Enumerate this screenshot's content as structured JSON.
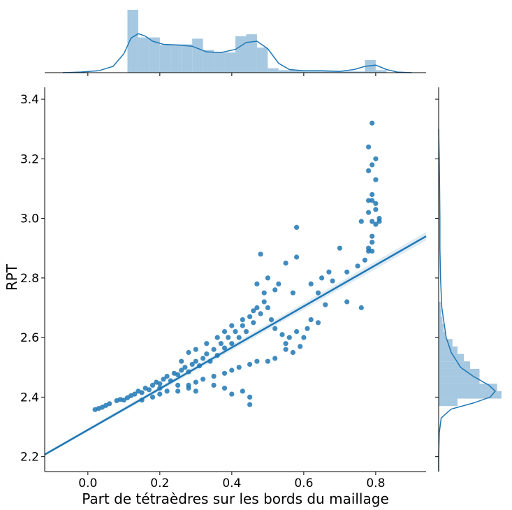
{
  "chart_data": {
    "type": "scatter",
    "title": "",
    "xlabel": "Part de tétraèdres sur les bords du maillage",
    "ylabel": "RPT",
    "xlim": [
      -0.12,
      0.94
    ],
    "ylim": [
      2.15,
      3.44
    ],
    "x_ticks": [
      "0.0",
      "0.2",
      "0.4",
      "0.6",
      "0.8"
    ],
    "x_tick_values": [
      0.0,
      0.2,
      0.4,
      0.6,
      0.8
    ],
    "y_ticks": [
      "2.2",
      "2.4",
      "2.6",
      "2.8",
      "3.0",
      "3.2",
      "3.4"
    ],
    "y_tick_values": [
      2.2,
      2.4,
      2.6,
      2.8,
      3.0,
      3.2,
      3.4
    ],
    "grid": false,
    "point_color": "#1f77b4",
    "hist_color": "#a6c8e1",
    "regression_line": {
      "x": [
        -0.12,
        0.94
      ],
      "y": [
        2.207,
        2.94
      ]
    },
    "scatter_points": [
      [
        0.02,
        2.358
      ],
      [
        0.03,
        2.362
      ],
      [
        0.04,
        2.366
      ],
      [
        0.05,
        2.372
      ],
      [
        0.06,
        2.378
      ],
      [
        0.08,
        2.388
      ],
      [
        0.09,
        2.392
      ],
      [
        0.1,
        2.39
      ],
      [
        0.11,
        2.398
      ],
      [
        0.12,
        2.405
      ],
      [
        0.13,
        2.41
      ],
      [
        0.14,
        2.42
      ],
      [
        0.15,
        2.415
      ],
      [
        0.16,
        2.43
      ],
      [
        0.17,
        2.425
      ],
      [
        0.18,
        2.44
      ],
      [
        0.19,
        2.45
      ],
      [
        0.2,
        2.445
      ],
      [
        0.21,
        2.46
      ],
      [
        0.22,
        2.47
      ],
      [
        0.23,
        2.455
      ],
      [
        0.24,
        2.48
      ],
      [
        0.25,
        2.475
      ],
      [
        0.26,
        2.49
      ],
      [
        0.27,
        2.5
      ],
      [
        0.28,
        2.485
      ],
      [
        0.29,
        2.51
      ],
      [
        0.3,
        2.52
      ],
      [
        0.31,
        2.505
      ],
      [
        0.32,
        2.53
      ],
      [
        0.33,
        2.545
      ],
      [
        0.34,
        2.52
      ],
      [
        0.35,
        2.56
      ],
      [
        0.36,
        2.54
      ],
      [
        0.37,
        2.58
      ],
      [
        0.38,
        2.565
      ],
      [
        0.39,
        2.6
      ],
      [
        0.4,
        2.58
      ],
      [
        0.41,
        2.62
      ],
      [
        0.42,
        2.6
      ],
      [
        0.43,
        2.64
      ],
      [
        0.44,
        2.62
      ],
      [
        0.45,
        2.67
      ],
      [
        0.46,
        2.65
      ],
      [
        0.47,
        2.7
      ],
      [
        0.48,
        2.68
      ],
      [
        0.49,
        2.72
      ],
      [
        0.5,
        2.7
      ],
      [
        0.51,
        2.66
      ],
      [
        0.52,
        2.63
      ],
      [
        0.15,
        2.39
      ],
      [
        0.18,
        2.4
      ],
      [
        0.2,
        2.41
      ],
      [
        0.22,
        2.42
      ],
      [
        0.25,
        2.44
      ],
      [
        0.28,
        2.44
      ],
      [
        0.3,
        2.45
      ],
      [
        0.32,
        2.46
      ],
      [
        0.35,
        2.47
      ],
      [
        0.38,
        2.48
      ],
      [
        0.4,
        2.49
      ],
      [
        0.42,
        2.5
      ],
      [
        0.45,
        2.51
      ],
      [
        0.47,
        2.52
      ],
      [
        0.5,
        2.52
      ],
      [
        0.52,
        2.53
      ],
      [
        0.55,
        2.56
      ],
      [
        0.56,
        2.6
      ],
      [
        0.57,
        2.55
      ],
      [
        0.58,
        2.62
      ],
      [
        0.26,
        2.52
      ],
      [
        0.28,
        2.55
      ],
      [
        0.3,
        2.56
      ],
      [
        0.33,
        2.58
      ],
      [
        0.36,
        2.6
      ],
      [
        0.38,
        2.62
      ],
      [
        0.4,
        2.64
      ],
      [
        0.43,
        2.66
      ],
      [
        0.46,
        2.69
      ],
      [
        0.49,
        2.75
      ],
      [
        0.45,
        2.4
      ],
      [
        0.43,
        2.42
      ],
      [
        0.4,
        2.41
      ],
      [
        0.38,
        2.43
      ],
      [
        0.35,
        2.44
      ],
      [
        0.3,
        2.42
      ],
      [
        0.28,
        2.43
      ],
      [
        0.25,
        2.42
      ],
      [
        0.2,
        2.43
      ],
      [
        0.45,
        2.375
      ],
      [
        0.47,
        2.78
      ],
      [
        0.48,
        2.88
      ],
      [
        0.5,
        2.8
      ],
      [
        0.52,
        2.76
      ],
      [
        0.53,
        2.78
      ],
      [
        0.55,
        2.85
      ],
      [
        0.57,
        2.75
      ],
      [
        0.58,
        2.87
      ],
      [
        0.58,
        2.97
      ],
      [
        0.62,
        2.78
      ],
      [
        0.64,
        2.75
      ],
      [
        0.65,
        2.8
      ],
      [
        0.67,
        2.82
      ],
      [
        0.68,
        2.79
      ],
      [
        0.7,
        2.9
      ],
      [
        0.72,
        2.82
      ],
      [
        0.75,
        2.84
      ],
      [
        0.76,
        2.99
      ],
      [
        0.77,
        2.86
      ],
      [
        0.78,
        2.9
      ],
      [
        0.76,
        2.7
      ],
      [
        0.72,
        2.72
      ],
      [
        0.66,
        2.71
      ],
      [
        0.62,
        2.66
      ],
      [
        0.64,
        2.65
      ],
      [
        0.79,
        3.32
      ],
      [
        0.78,
        3.24
      ],
      [
        0.8,
        3.2
      ],
      [
        0.79,
        3.18
      ],
      [
        0.78,
        3.16
      ],
      [
        0.79,
        3.08
      ],
      [
        0.79,
        3.06
      ],
      [
        0.78,
        3.02
      ],
      [
        0.8,
        3.05
      ],
      [
        0.8,
        3.03
      ],
      [
        0.81,
        2.99
      ],
      [
        0.79,
        2.94
      ],
      [
        0.79,
        2.92
      ],
      [
        0.79,
        2.89
      ],
      [
        0.8,
        3.13
      ],
      [
        0.79,
        2.99
      ],
      [
        0.81,
        3.0
      ],
      [
        0.78,
        3.06
      ],
      [
        0.8,
        2.98
      ],
      [
        0.78,
        2.89
      ],
      [
        0.6,
        2.6
      ],
      [
        0.61,
        2.63
      ],
      [
        0.59,
        2.57
      ],
      [
        0.54,
        2.61
      ],
      [
        0.55,
        2.58
      ]
    ],
    "x_marginal": {
      "bin_edges": [
        0.11,
        0.14,
        0.17,
        0.2,
        0.23,
        0.26,
        0.29,
        0.32,
        0.35,
        0.38,
        0.41,
        0.44,
        0.47,
        0.5,
        0.53,
        0.56,
        0.59,
        0.62,
        0.65,
        0.68,
        0.71,
        0.74,
        0.77,
        0.8,
        0.83
      ],
      "counts": [
        1.0,
        0.56,
        0.56,
        0.44,
        0.45,
        0.45,
        0.54,
        0.36,
        0.32,
        0.32,
        0.58,
        0.61,
        0.4,
        0.07,
        0.04,
        0.04,
        0.03,
        0.03,
        0.03,
        0.02,
        0.02,
        0.02,
        0.2,
        0.04
      ],
      "kde_x": [
        -0.07,
        -0.02,
        0.03,
        0.07,
        0.1,
        0.12,
        0.14,
        0.16,
        0.18,
        0.21,
        0.25,
        0.29,
        0.33,
        0.37,
        0.41,
        0.44,
        0.47,
        0.5,
        0.53,
        0.56,
        0.6,
        0.65,
        0.7,
        0.74,
        0.77,
        0.8,
        0.83,
        0.86,
        0.9
      ],
      "kde_y": [
        0.0,
        0.01,
        0.03,
        0.1,
        0.3,
        0.55,
        0.62,
        0.58,
        0.5,
        0.45,
        0.44,
        0.42,
        0.33,
        0.32,
        0.37,
        0.48,
        0.5,
        0.38,
        0.15,
        0.05,
        0.03,
        0.03,
        0.02,
        0.05,
        0.1,
        0.12,
        0.05,
        0.01,
        0.0
      ]
    },
    "y_marginal": {
      "bin_edges": [
        2.37,
        2.395,
        2.42,
        2.445,
        2.47,
        2.495,
        2.52,
        2.545,
        2.57,
        2.595,
        2.62,
        2.645,
        2.67,
        2.695,
        2.72
      ],
      "counts": [
        0.3,
        1.0,
        0.93,
        0.65,
        0.65,
        0.5,
        0.4,
        0.3,
        0.22,
        0.12,
        0.08,
        0.06,
        0.04,
        0.03
      ],
      "kde_y": [
        2.15,
        2.2,
        2.28,
        2.33,
        2.36,
        2.38,
        2.4,
        2.42,
        2.44,
        2.47,
        2.5,
        2.55,
        2.6,
        2.7,
        2.8,
        2.9,
        3.0,
        3.1,
        3.2,
        3.3
      ],
      "kde_x": [
        0.0,
        0.0,
        0.01,
        0.04,
        0.2,
        0.55,
        0.82,
        0.9,
        0.8,
        0.55,
        0.35,
        0.2,
        0.12,
        0.05,
        0.03,
        0.02,
        0.02,
        0.015,
        0.01,
        0.0
      ]
    }
  }
}
